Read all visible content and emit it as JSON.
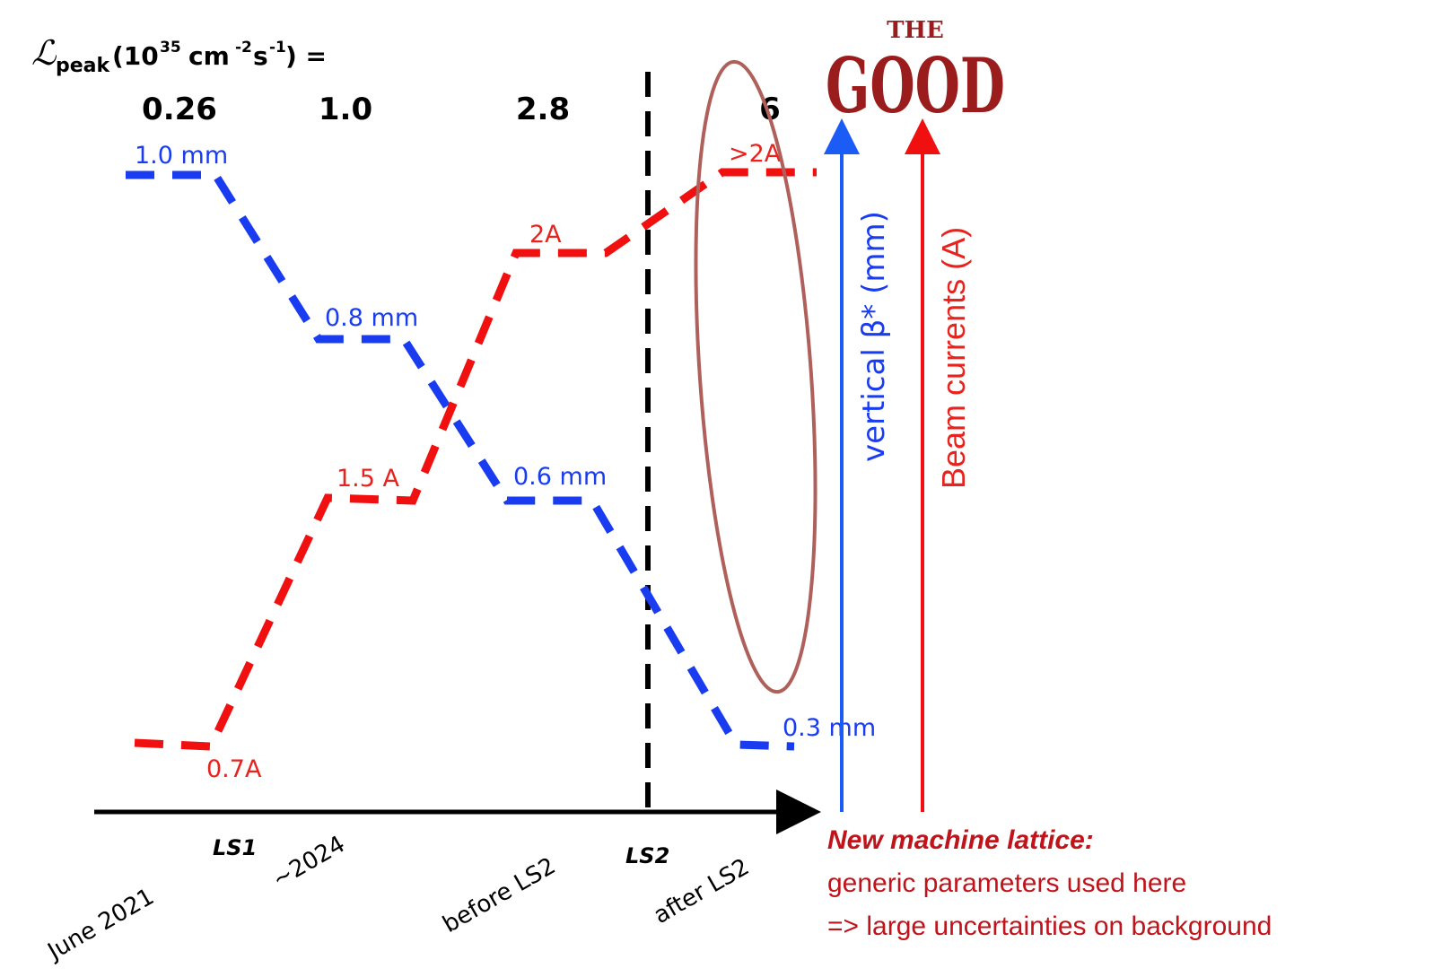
{
  "luminosity_label": {
    "symbol": "ℒ",
    "subscript": "peak",
    "open": "(10",
    "exp1": "35",
    "unit1": "cm",
    "exp2": "-2",
    "unit2": "s",
    "exp3": "-1",
    "close": ") ="
  },
  "luminosity_values": [
    "0.26",
    "1.0",
    "2.8",
    "6"
  ],
  "beta_labels": [
    "1.0 mm",
    "0.8 mm",
    "0.6 mm",
    "0.3 mm"
  ],
  "current_labels": [
    "0.7A",
    "1.5 A",
    "2A",
    ">2A"
  ],
  "x_labels": [
    "June 2021",
    "~2024",
    "before LS2",
    "after LS2"
  ],
  "shutdowns": [
    "LS1",
    "LS2"
  ],
  "axis_titles": {
    "beta": "vertical β* (mm)",
    "current": "Beam currents (A)"
  },
  "logo": {
    "top": "THE",
    "main": "GOOD"
  },
  "note": {
    "title": "New machine lattice:",
    "line1": "generic parameters used here",
    "line2": "=> large uncertainties on background"
  }
}
